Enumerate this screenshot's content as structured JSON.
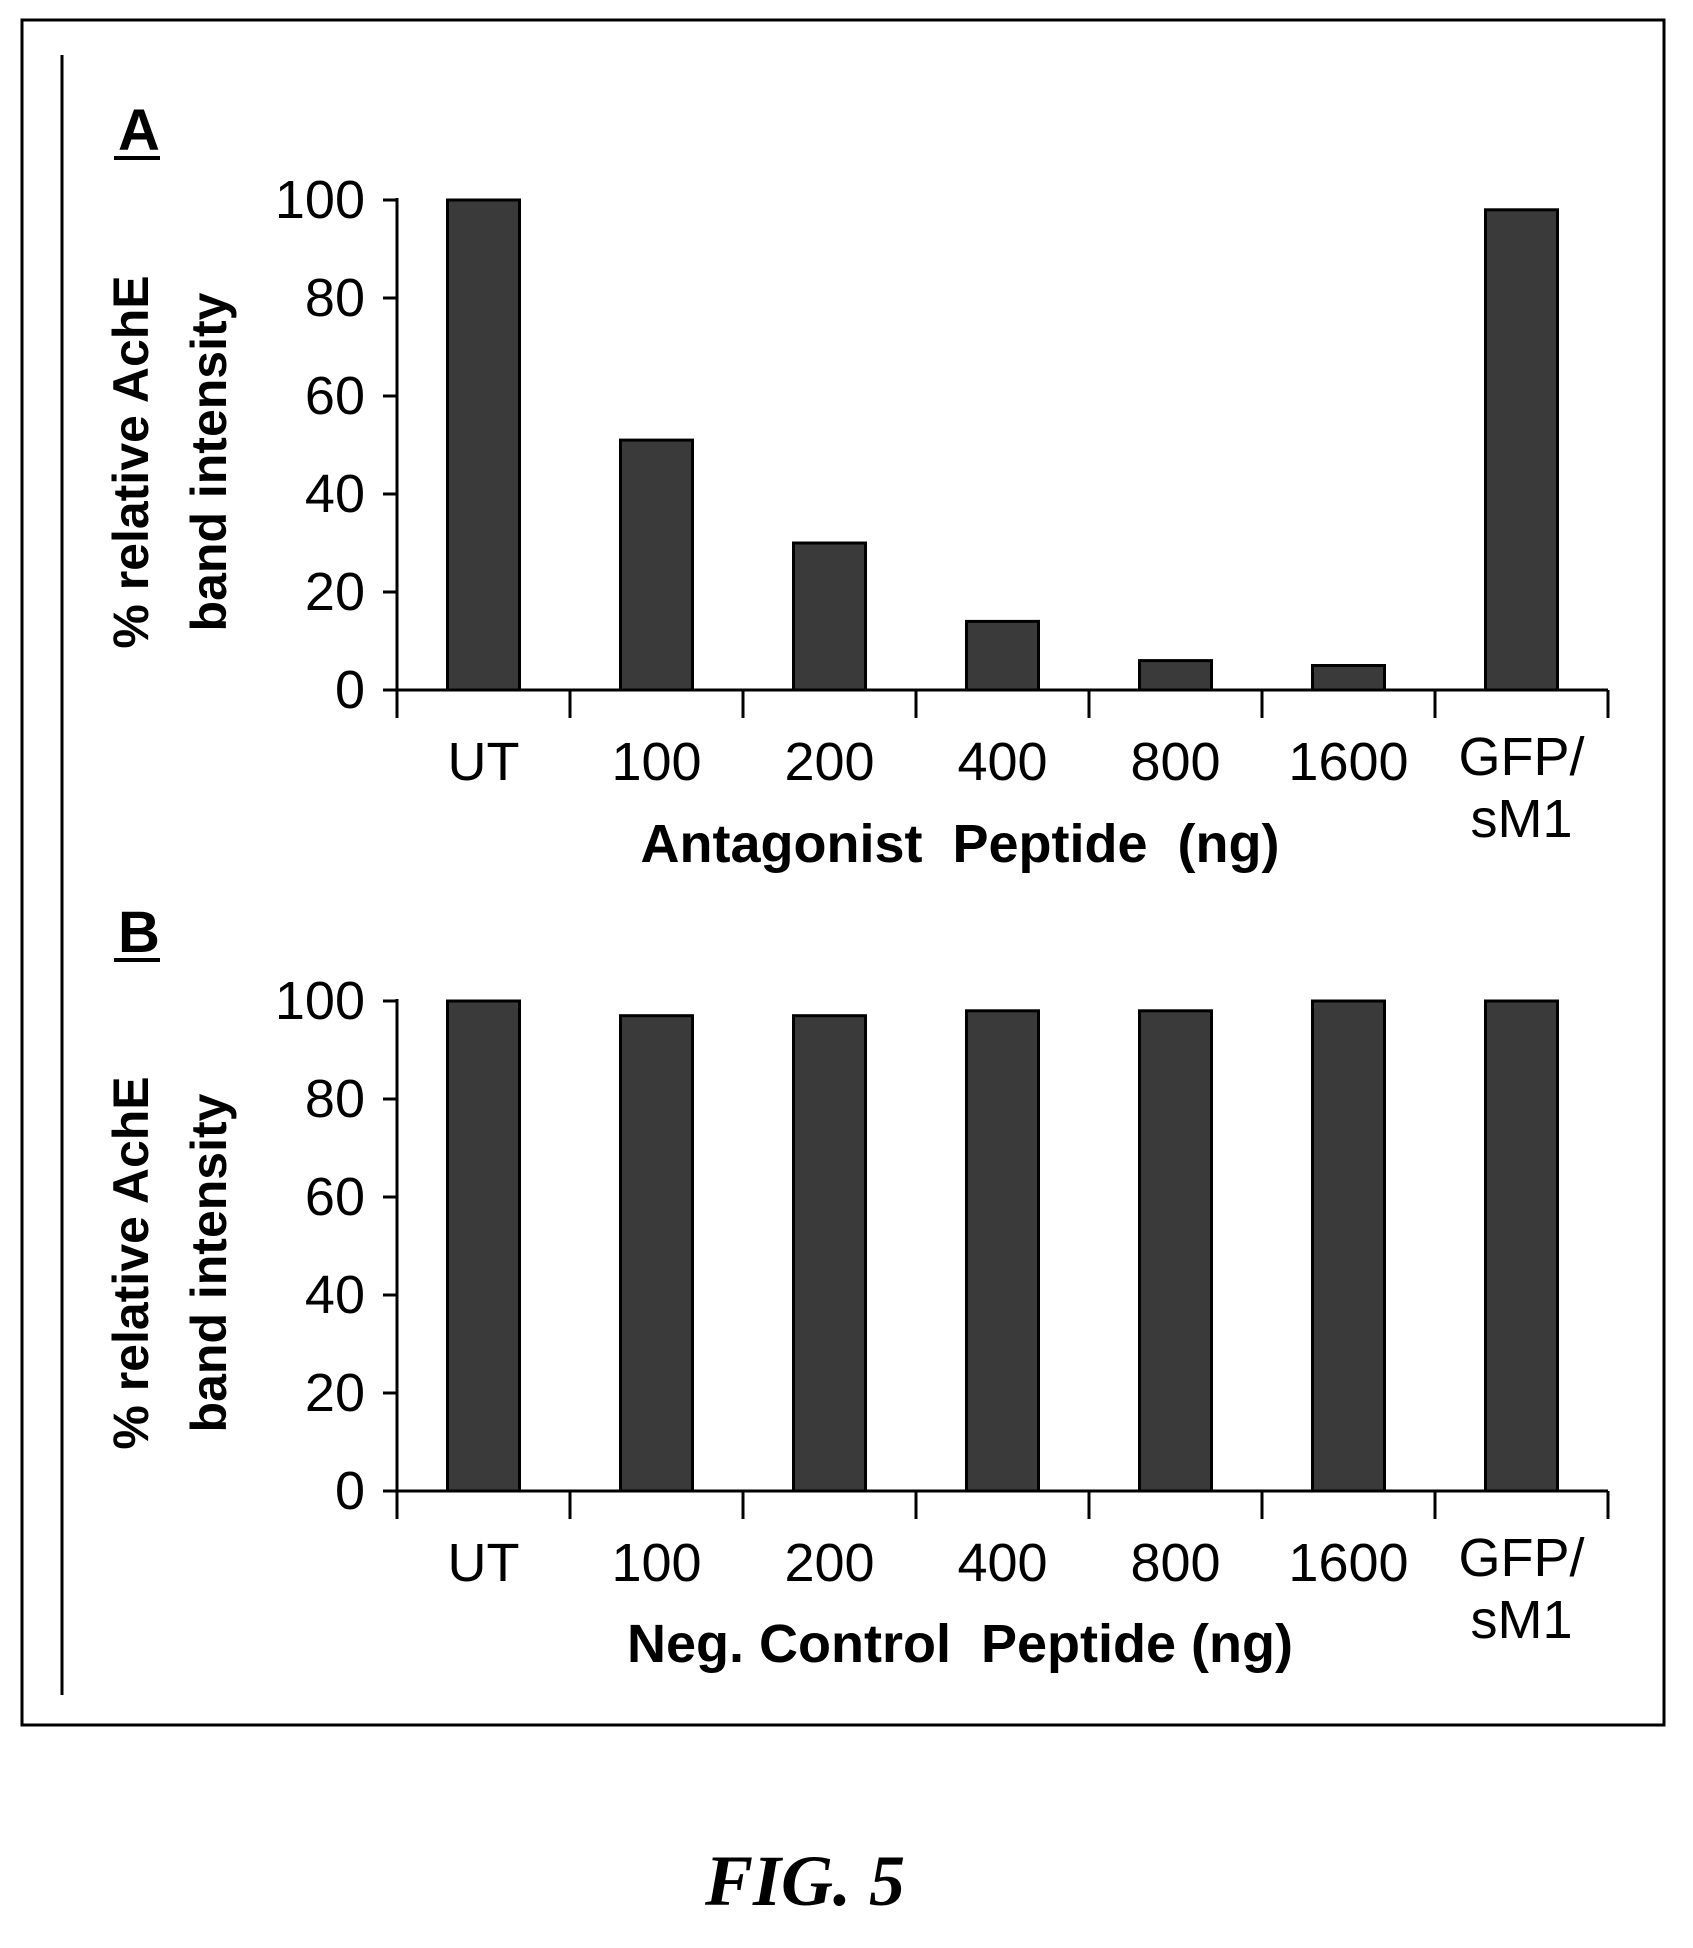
{
  "figure_label": "FIG. 5",
  "colors": {
    "bar_fill": "#3a3a3a",
    "axis": "#000000",
    "frame": "#000000"
  },
  "chart_data": [
    {
      "panel_label": "A",
      "type": "bar",
      "categories": [
        "UT",
        "100",
        "200",
        "400",
        "800",
        "1600",
        "GFP/ sM1"
      ],
      "values": [
        100,
        51,
        30,
        14,
        6,
        5,
        98
      ],
      "ylabel_line1": "% relative AchE",
      "ylabel_line2": "band intensity",
      "xlabel": "Antagonist  Peptide  (ng)",
      "yticks": [
        0,
        20,
        40,
        60,
        80,
        100
      ],
      "ylim": [
        0,
        100
      ],
      "grid": false,
      "legend": "none"
    },
    {
      "panel_label": "B",
      "type": "bar",
      "categories": [
        "UT",
        "100",
        "200",
        "400",
        "800",
        "1600",
        "GFP/ sM1"
      ],
      "values": [
        100,
        97,
        97,
        98,
        98,
        100,
        100
      ],
      "ylabel_line1": "% relative AchE",
      "ylabel_line2": "band intensity",
      "xlabel": "Neg. Control  Peptide (ng)",
      "yticks": [
        0,
        20,
        40,
        60,
        80,
        100
      ],
      "ylim": [
        0,
        100
      ],
      "grid": false,
      "legend": "none"
    }
  ]
}
